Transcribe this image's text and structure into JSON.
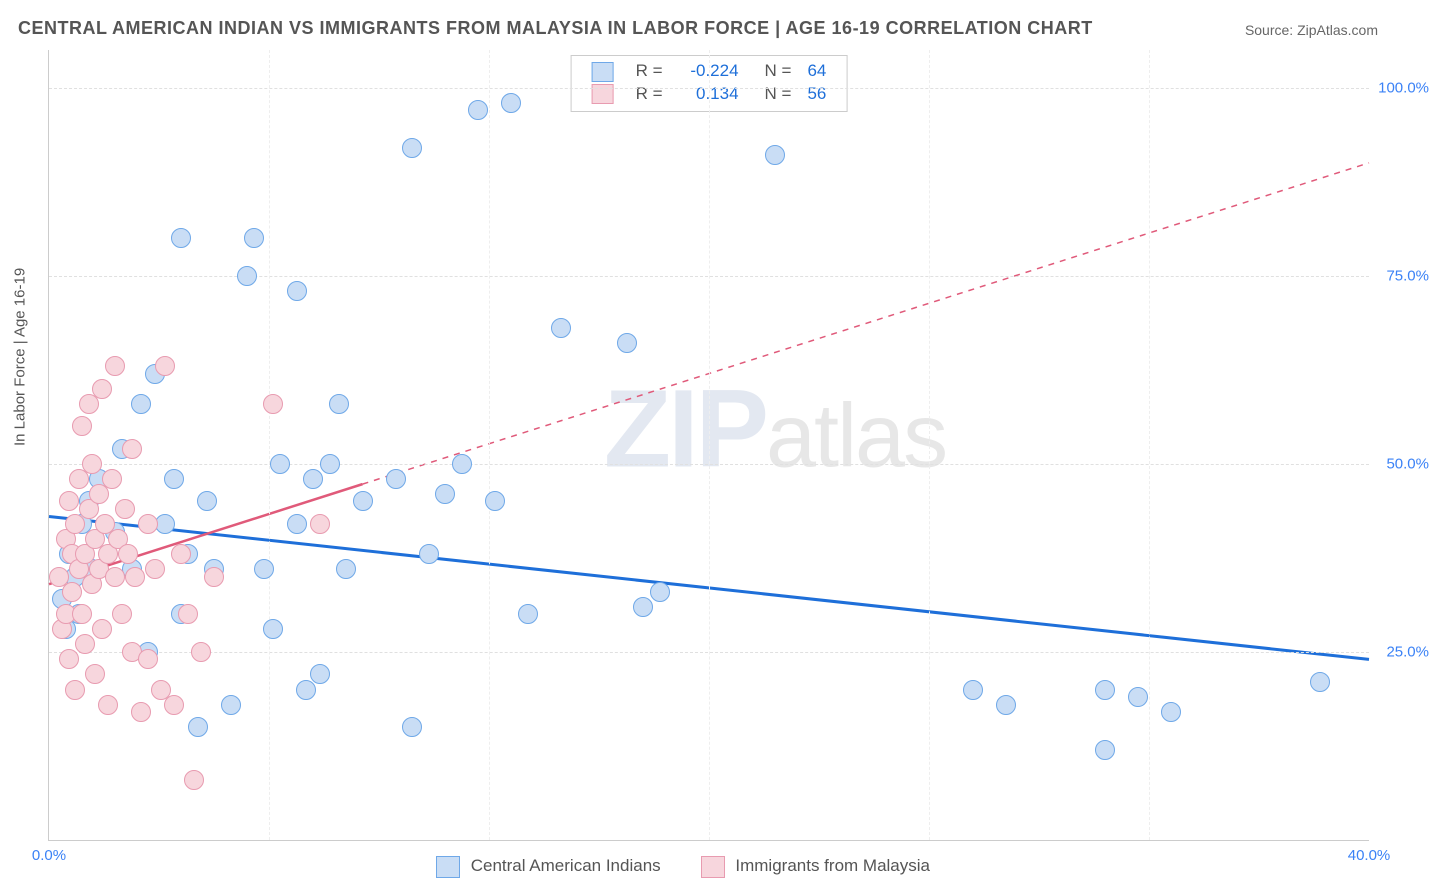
{
  "title": "CENTRAL AMERICAN INDIAN VS IMMIGRANTS FROM MALAYSIA IN LABOR FORCE | AGE 16-19 CORRELATION CHART",
  "source_label": "Source:",
  "source_link_text": "ZipAtlas.com",
  "y_axis_title": "In Labor Force | Age 16-19",
  "chart": {
    "type": "scatter",
    "xlim": [
      0,
      40
    ],
    "ylim": [
      0,
      105
    ],
    "xticks": [
      0,
      40
    ],
    "xtick_labels": [
      "0.0%",
      "40.0%"
    ],
    "yticks": [
      25,
      50,
      75,
      100
    ],
    "ytick_labels": [
      "25.0%",
      "50.0%",
      "75.0%",
      "100.0%"
    ],
    "x_minor_ticks": [
      6.67,
      13.33,
      20,
      26.67,
      33.33
    ],
    "grid_color": "#e0e0e0",
    "background_color": "#ffffff",
    "axis_color": "#cccccc",
    "tick_label_color": "#3b82f6",
    "tick_label_fontsize": 15,
    "marker_radius": 9,
    "marker_stroke_width": 1.5,
    "series": [
      {
        "name": "Central American Indians",
        "color_fill": "#c9ddf5",
        "color_stroke": "#6fa8e8",
        "R": -0.224,
        "N": 64,
        "trend": {
          "x1": 0,
          "y1": 43,
          "x2": 40,
          "y2": 24,
          "solid_until_x": 40,
          "line_width": 3,
          "color": "#1e6fd9"
        },
        "points": [
          [
            0.4,
            32
          ],
          [
            0.5,
            28
          ],
          [
            0.6,
            38
          ],
          [
            0.8,
            35
          ],
          [
            0.9,
            30
          ],
          [
            1.0,
            42
          ],
          [
            1.2,
            45
          ],
          [
            1.3,
            36
          ],
          [
            1.5,
            48
          ],
          [
            2.0,
            41
          ],
          [
            2.2,
            52
          ],
          [
            2.5,
            36
          ],
          [
            2.8,
            58
          ],
          [
            3.0,
            25
          ],
          [
            3.2,
            62
          ],
          [
            3.5,
            42
          ],
          [
            3.8,
            48
          ],
          [
            4.0,
            30
          ],
          [
            4.0,
            80
          ],
          [
            4.2,
            38
          ],
          [
            4.5,
            15
          ],
          [
            4.8,
            45
          ],
          [
            5.0,
            36
          ],
          [
            5.5,
            18
          ],
          [
            6.0,
            75
          ],
          [
            6.2,
            80
          ],
          [
            6.5,
            36
          ],
          [
            6.8,
            28
          ],
          [
            7.0,
            50
          ],
          [
            7.5,
            42
          ],
          [
            7.8,
            20
          ],
          [
            7.5,
            73
          ],
          [
            8.0,
            48
          ],
          [
            8.2,
            22
          ],
          [
            8.5,
            50
          ],
          [
            8.8,
            58
          ],
          [
            9.0,
            36
          ],
          [
            9.5,
            45
          ],
          [
            10.5,
            48
          ],
          [
            11.0,
            15
          ],
          [
            11.0,
            92
          ],
          [
            11.5,
            38
          ],
          [
            12.0,
            46
          ],
          [
            12.5,
            50
          ],
          [
            13.0,
            97
          ],
          [
            13.5,
            45
          ],
          [
            14.0,
            98
          ],
          [
            14.5,
            30
          ],
          [
            15.5,
            68
          ],
          [
            17.5,
            66
          ],
          [
            18.0,
            31
          ],
          [
            18.5,
            33
          ],
          [
            22.0,
            91
          ],
          [
            28.0,
            20
          ],
          [
            29.0,
            18
          ],
          [
            32.0,
            20
          ],
          [
            32.0,
            12
          ],
          [
            33.0,
            19
          ],
          [
            34.0,
            17
          ],
          [
            38.5,
            21
          ]
        ]
      },
      {
        "name": "Immigrants from Malaysia",
        "color_fill": "#f7d6dd",
        "color_stroke": "#e89bb0",
        "R": 0.134,
        "N": 56,
        "trend": {
          "x1": 0,
          "y1": 34,
          "x2": 40,
          "y2": 90,
          "solid_until_x": 9.5,
          "line_width": 2.5,
          "color": "#e05a7a"
        },
        "points": [
          [
            0.3,
            35
          ],
          [
            0.4,
            28
          ],
          [
            0.5,
            40
          ],
          [
            0.5,
            30
          ],
          [
            0.6,
            45
          ],
          [
            0.6,
            24
          ],
          [
            0.7,
            38
          ],
          [
            0.7,
            33
          ],
          [
            0.8,
            42
          ],
          [
            0.8,
            20
          ],
          [
            0.9,
            36
          ],
          [
            0.9,
            48
          ],
          [
            1.0,
            30
          ],
          [
            1.0,
            55
          ],
          [
            1.1,
            38
          ],
          [
            1.1,
            26
          ],
          [
            1.2,
            44
          ],
          [
            1.2,
            58
          ],
          [
            1.3,
            34
          ],
          [
            1.3,
            50
          ],
          [
            1.4,
            40
          ],
          [
            1.4,
            22
          ],
          [
            1.5,
            46
          ],
          [
            1.5,
            36
          ],
          [
            1.6,
            60
          ],
          [
            1.6,
            28
          ],
          [
            1.7,
            42
          ],
          [
            1.8,
            38
          ],
          [
            1.8,
            18
          ],
          [
            1.9,
            48
          ],
          [
            2.0,
            35
          ],
          [
            2.0,
            63
          ],
          [
            2.1,
            40
          ],
          [
            2.2,
            30
          ],
          [
            2.3,
            44
          ],
          [
            2.4,
            38
          ],
          [
            2.5,
            25
          ],
          [
            2.5,
            52
          ],
          [
            2.6,
            35
          ],
          [
            2.8,
            17
          ],
          [
            3.0,
            24
          ],
          [
            3.0,
            42
          ],
          [
            3.2,
            36
          ],
          [
            3.4,
            20
          ],
          [
            3.5,
            63
          ],
          [
            3.8,
            18
          ],
          [
            4.0,
            38
          ],
          [
            4.2,
            30
          ],
          [
            4.4,
            8
          ],
          [
            4.6,
            25
          ],
          [
            5.0,
            35
          ],
          [
            6.8,
            58
          ],
          [
            8.2,
            42
          ]
        ]
      }
    ]
  },
  "legend_top": {
    "R_label": "R =",
    "N_label": "N =",
    "value_color": "#1e6fd9"
  },
  "legend_bottom": {
    "items": [
      "Central American Indians",
      "Immigrants from Malaysia"
    ]
  },
  "watermark": {
    "part1": "ZIP",
    "part2": "atlas"
  }
}
